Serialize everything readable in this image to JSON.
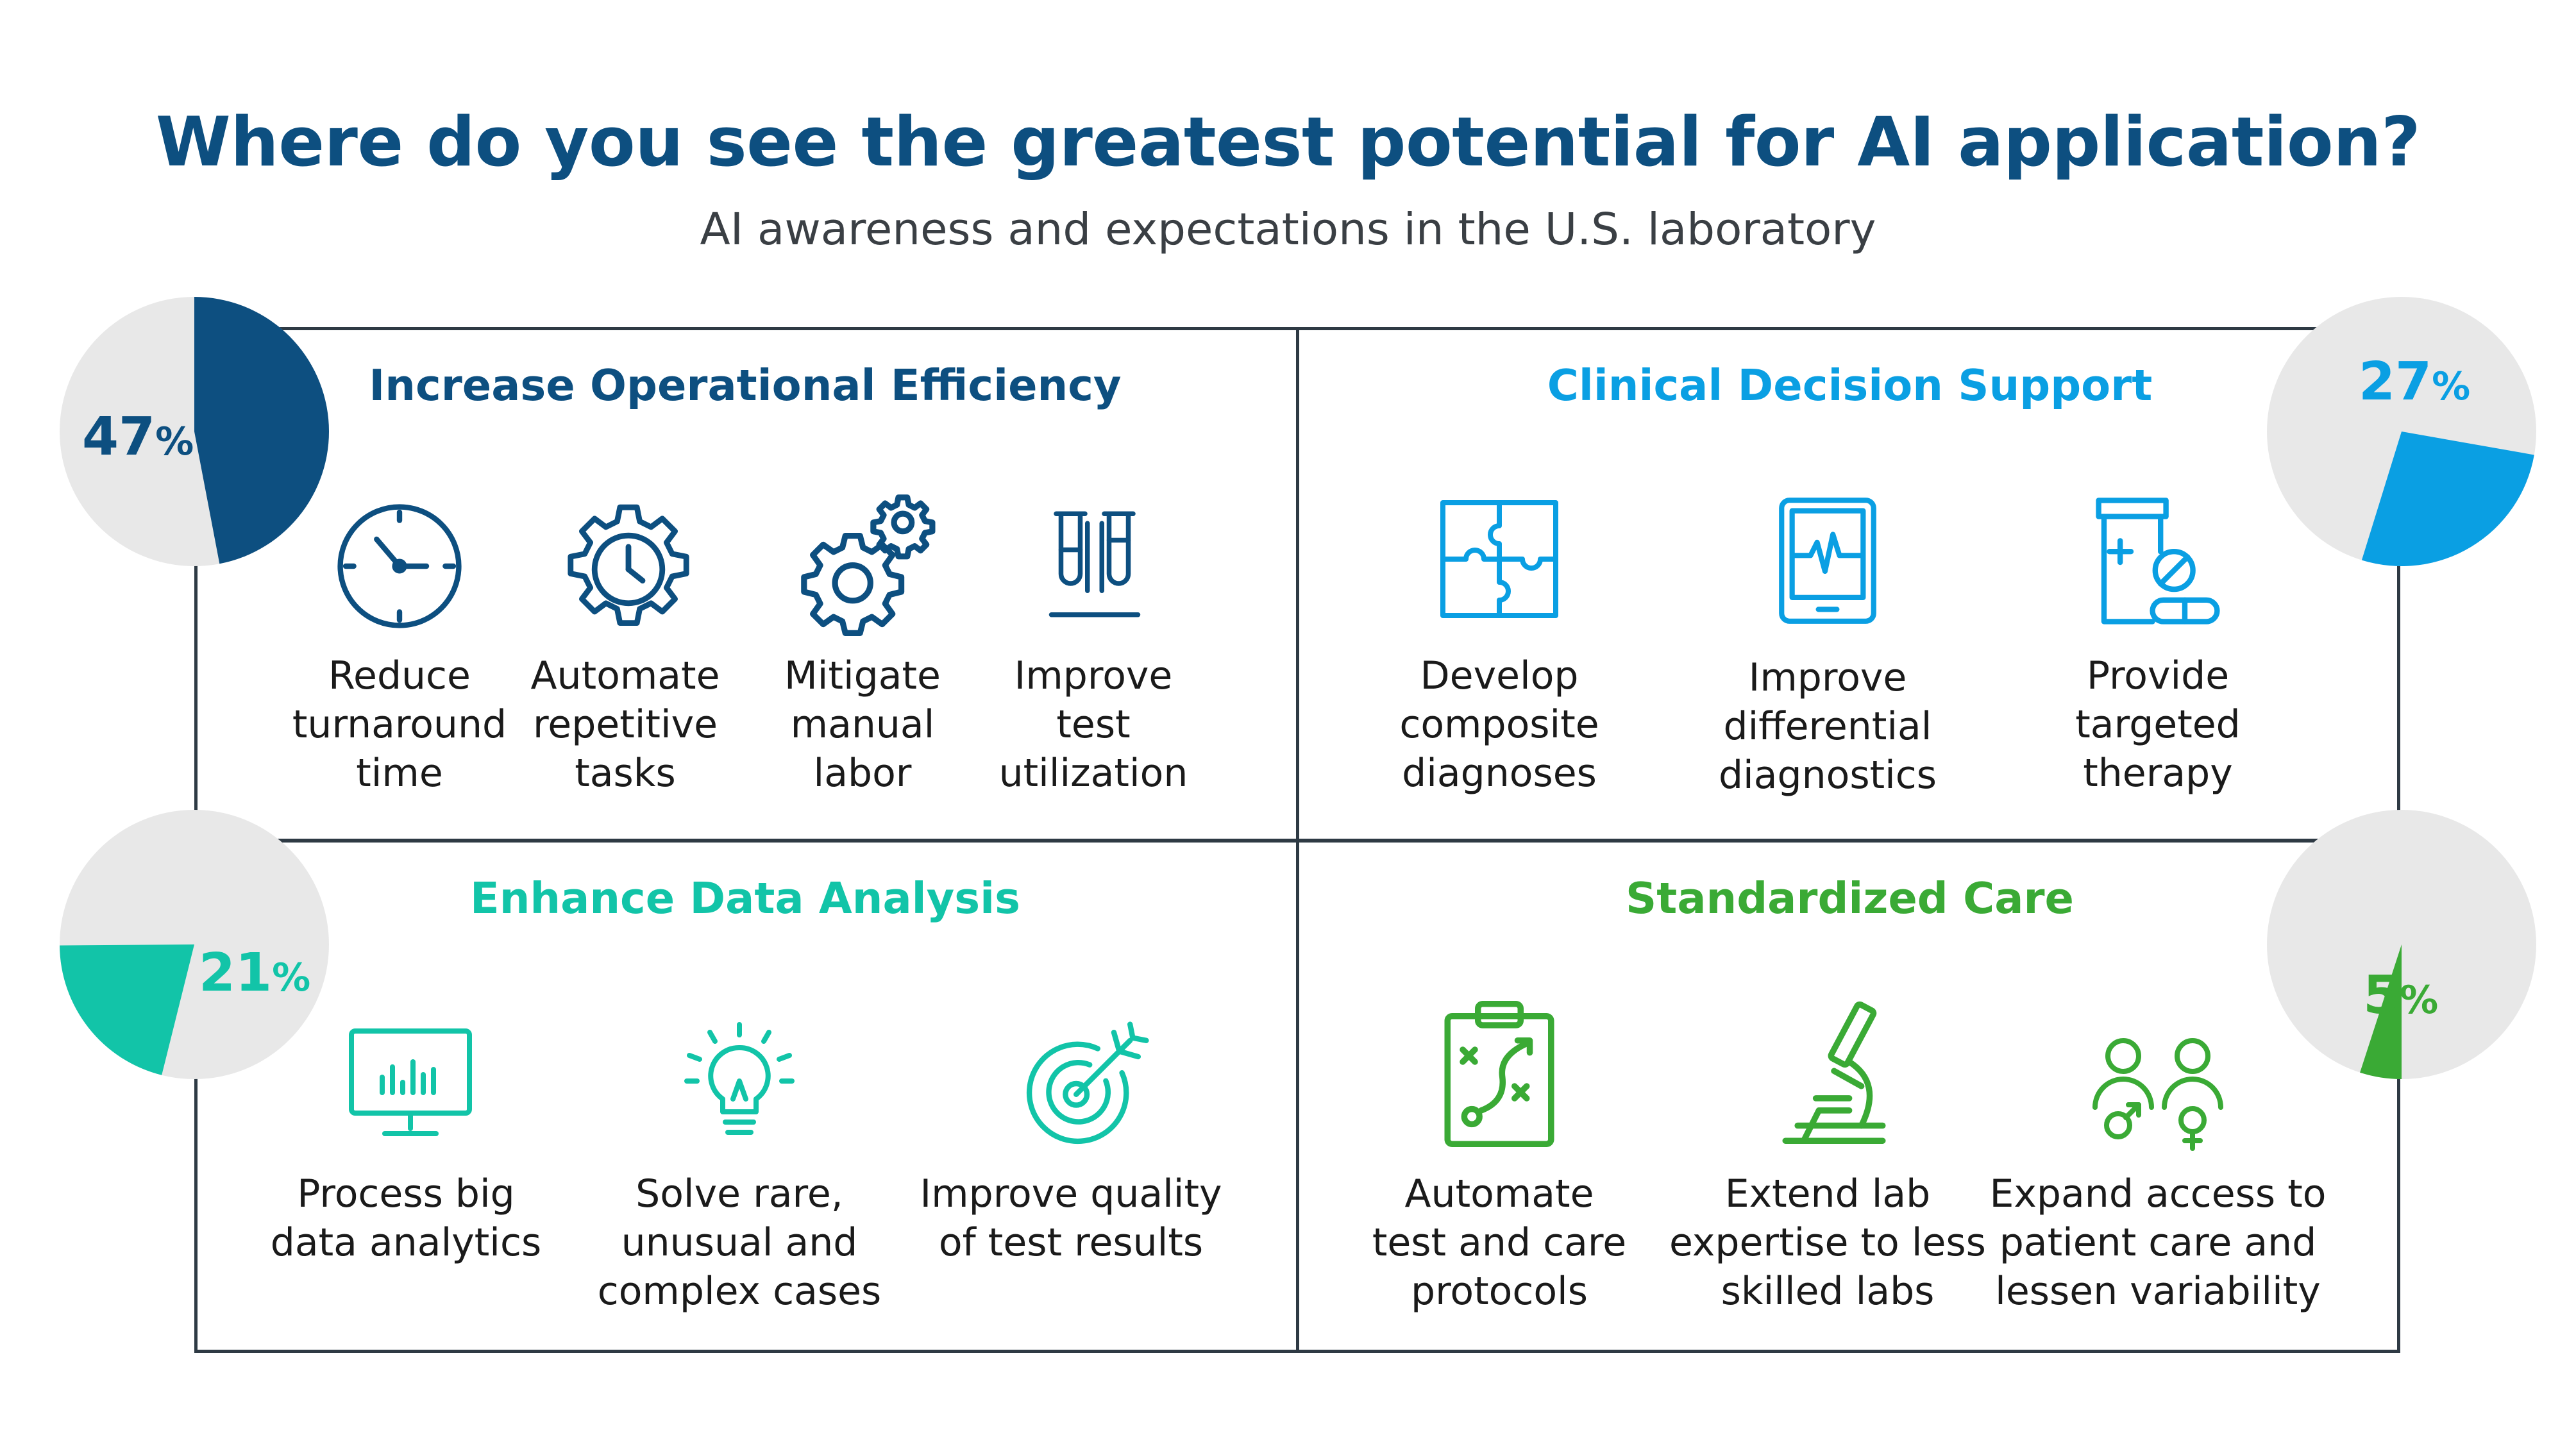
{
  "header": {
    "title": "Where do you see the greatest potential for AI application?",
    "subtitle": "AI awareness and expectations in the U.S. laboratory"
  },
  "chart_data": {
    "type": "pie",
    "title": "Where do you see the greatest potential for AI application?",
    "subtitle": "AI awareness and expectations in the U.S. laboratory",
    "categories": [
      "Increase Operational Efficiency",
      "Clinical Decision Support",
      "Enhance Data Analysis",
      "Standardized Care"
    ],
    "values": [
      47,
      27,
      21,
      5
    ],
    "unit": "%",
    "colors": [
      "#0d4f80",
      "#0a9fe3",
      "#12c4a8",
      "#3aaa35"
    ],
    "background_color": "#e8e8e8"
  },
  "quadrants": [
    {
      "title": "Increase Operational Efficiency",
      "color": "#0d4f80",
      "percent": "47",
      "sign": "%",
      "items": [
        {
          "icon": "clock-icon",
          "lines": [
            "Reduce",
            "turnaround",
            "time"
          ]
        },
        {
          "icon": "gear-clock-icon",
          "lines": [
            "Automate",
            "repetitive",
            "tasks"
          ]
        },
        {
          "icon": "gears-icon",
          "lines": [
            "Mitigate",
            "manual",
            "labor"
          ]
        },
        {
          "icon": "test-tubes-icon",
          "lines": [
            "Improve",
            "test",
            "utilization"
          ]
        }
      ]
    },
    {
      "title": "Clinical Decision Support",
      "color": "#0a9fe3",
      "percent": "27",
      "sign": "%",
      "items": [
        {
          "icon": "puzzle-icon",
          "lines": [
            "Develop",
            "composite",
            "diagnoses"
          ]
        },
        {
          "icon": "tablet-heartbeat-icon",
          "lines": [
            "Improve",
            "differential",
            "diagnostics"
          ]
        },
        {
          "icon": "medicine-bottle-icon",
          "lines": [
            "Provide",
            "targeted",
            "therapy"
          ]
        }
      ]
    },
    {
      "title": "Enhance Data Analysis",
      "color": "#12c4a8",
      "percent": "21",
      "sign": "%",
      "items": [
        {
          "icon": "monitor-chart-icon",
          "lines": [
            "Process big",
            "data analytics"
          ]
        },
        {
          "icon": "lightbulb-icon",
          "lines": [
            "Solve rare,",
            "unusual and",
            "complex cases"
          ]
        },
        {
          "icon": "target-arrow-icon",
          "lines": [
            "Improve quality",
            "of test results"
          ]
        }
      ]
    },
    {
      "title": "Standardized Care",
      "color": "#3aaa35",
      "percent": "5",
      "sign": "%",
      "items": [
        {
          "icon": "clipboard-plan-icon",
          "lines": [
            "Automate",
            "test and care",
            "protocols"
          ]
        },
        {
          "icon": "microscope-icon",
          "lines": [
            "Extend lab",
            "expertise to less",
            "skilled labs"
          ]
        },
        {
          "icon": "people-gender-icon",
          "lines": [
            "Expand access to",
            "patient care and",
            "lessen variability"
          ]
        }
      ]
    }
  ]
}
